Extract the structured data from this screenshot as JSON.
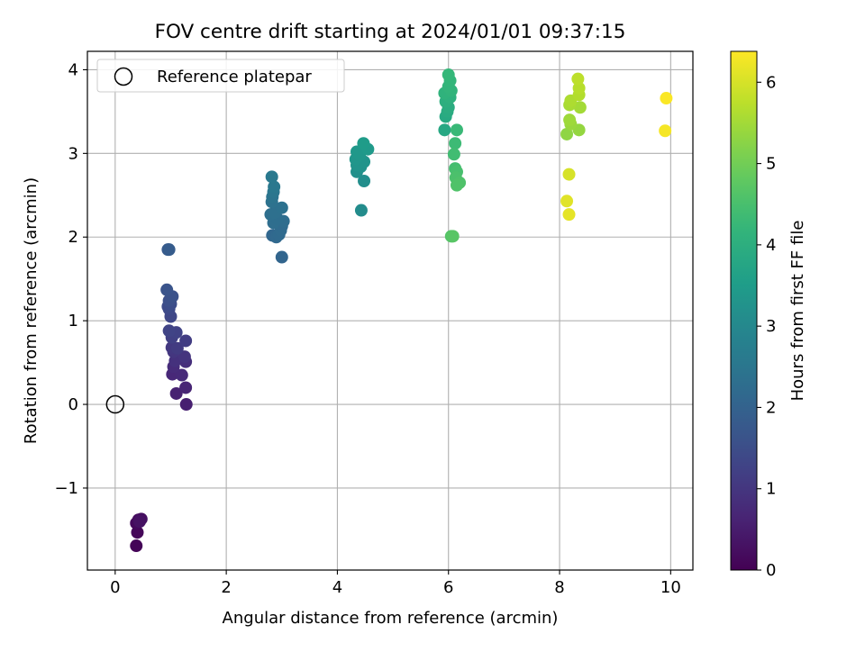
{
  "chart_data": {
    "type": "scatter",
    "title": "FOV centre drift starting at 2024/01/01 09:37:15",
    "xlabel": "Angular distance from reference (arcmin)",
    "ylabel": "Rotation from reference (arcmin)",
    "xlim": [
      -0.5,
      10.4
    ],
    "ylim": [
      -1.98,
      4.22
    ],
    "xticks": [
      0,
      2,
      4,
      6,
      8,
      10
    ],
    "xtick_labels": [
      "0",
      "2",
      "4",
      "6",
      "8",
      "10"
    ],
    "yticks": [
      -1,
      0,
      1,
      2,
      3,
      4
    ],
    "ytick_labels": [
      "−1",
      "0",
      "1",
      "2",
      "3",
      "4"
    ],
    "grid": true,
    "legend": {
      "placement": "upper-left",
      "entries": [
        "Reference platepar"
      ]
    },
    "reference_point": {
      "x": 0,
      "y": 0,
      "marker": "open-circle"
    },
    "colorbar": {
      "label": "Hours from first FF file",
      "colormap": "viridis",
      "range": [
        0,
        6.38
      ],
      "ticks": [
        0,
        1,
        2,
        3,
        4,
        5,
        6
      ],
      "tick_labels": [
        "0",
        "1",
        "2",
        "3",
        "4",
        "5",
        "6"
      ]
    },
    "points": [
      {
        "x": 0.38,
        "y": -1.69,
        "c": 0.05
      },
      {
        "x": 0.4,
        "y": -1.53,
        "c": 0.1
      },
      {
        "x": 0.38,
        "y": -1.42,
        "c": 0.15
      },
      {
        "x": 0.42,
        "y": -1.38,
        "c": 0.2
      },
      {
        "x": 0.47,
        "y": -1.37,
        "c": 0.25
      },
      {
        "x": 0.44,
        "y": -1.4,
        "c": 0.3
      },
      {
        "x": 1.28,
        "y": 0.0,
        "c": 0.55
      },
      {
        "x": 1.1,
        "y": 0.13,
        "c": 0.6
      },
      {
        "x": 1.27,
        "y": 0.2,
        "c": 0.65
      },
      {
        "x": 1.03,
        "y": 0.36,
        "c": 0.7
      },
      {
        "x": 1.2,
        "y": 0.35,
        "c": 0.75
      },
      {
        "x": 1.05,
        "y": 0.45,
        "c": 0.8
      },
      {
        "x": 1.27,
        "y": 0.51,
        "c": 0.85
      },
      {
        "x": 1.08,
        "y": 0.52,
        "c": 0.9
      },
      {
        "x": 1.25,
        "y": 0.57,
        "c": 0.95
      },
      {
        "x": 1.05,
        "y": 0.63,
        "c": 1.0
      },
      {
        "x": 1.02,
        "y": 0.68,
        "c": 1.05
      },
      {
        "x": 1.12,
        "y": 0.67,
        "c": 1.1
      },
      {
        "x": 1.27,
        "y": 0.76,
        "c": 1.15
      },
      {
        "x": 1.02,
        "y": 0.8,
        "c": 1.2
      },
      {
        "x": 1.1,
        "y": 0.86,
        "c": 1.25
      },
      {
        "x": 0.97,
        "y": 0.88,
        "c": 1.3
      },
      {
        "x": 1.0,
        "y": 1.05,
        "c": 1.35
      },
      {
        "x": 0.97,
        "y": 1.14,
        "c": 1.4
      },
      {
        "x": 0.95,
        "y": 1.17,
        "c": 1.45
      },
      {
        "x": 1.0,
        "y": 1.2,
        "c": 1.5
      },
      {
        "x": 0.97,
        "y": 1.24,
        "c": 1.55
      },
      {
        "x": 1.03,
        "y": 1.29,
        "c": 1.6
      },
      {
        "x": 0.93,
        "y": 1.37,
        "c": 1.65
      },
      {
        "x": 0.95,
        "y": 1.85,
        "c": 1.8
      },
      {
        "x": 0.97,
        "y": 1.85,
        "c": 1.85
      },
      {
        "x": 3.0,
        "y": 1.76,
        "c": 2.05
      },
      {
        "x": 2.83,
        "y": 2.02,
        "c": 2.1
      },
      {
        "x": 2.9,
        "y": 2.0,
        "c": 2.15
      },
      {
        "x": 2.95,
        "y": 2.03,
        "c": 2.18
      },
      {
        "x": 2.98,
        "y": 2.08,
        "c": 2.2
      },
      {
        "x": 3.0,
        "y": 2.13,
        "c": 2.22
      },
      {
        "x": 3.03,
        "y": 2.19,
        "c": 2.25
      },
      {
        "x": 2.85,
        "y": 2.17,
        "c": 2.28
      },
      {
        "x": 2.92,
        "y": 2.22,
        "c": 2.3
      },
      {
        "x": 2.8,
        "y": 2.27,
        "c": 2.33
      },
      {
        "x": 2.87,
        "y": 2.29,
        "c": 2.35
      },
      {
        "x": 3.0,
        "y": 2.35,
        "c": 2.38
      },
      {
        "x": 2.82,
        "y": 2.42,
        "c": 2.4
      },
      {
        "x": 2.83,
        "y": 2.48,
        "c": 2.45
      },
      {
        "x": 2.85,
        "y": 2.54,
        "c": 2.5
      },
      {
        "x": 2.86,
        "y": 2.6,
        "c": 2.55
      },
      {
        "x": 2.82,
        "y": 2.72,
        "c": 2.6
      },
      {
        "x": 4.43,
        "y": 2.32,
        "c": 3.1
      },
      {
        "x": 4.48,
        "y": 2.67,
        "c": 3.15
      },
      {
        "x": 4.35,
        "y": 2.78,
        "c": 3.2
      },
      {
        "x": 4.42,
        "y": 2.84,
        "c": 3.25
      },
      {
        "x": 4.35,
        "y": 2.86,
        "c": 3.28
      },
      {
        "x": 4.48,
        "y": 2.9,
        "c": 3.3
      },
      {
        "x": 4.33,
        "y": 2.93,
        "c": 3.33
      },
      {
        "x": 4.4,
        "y": 2.98,
        "c": 3.36
      },
      {
        "x": 4.35,
        "y": 3.02,
        "c": 3.4
      },
      {
        "x": 4.55,
        "y": 3.05,
        "c": 3.45
      },
      {
        "x": 4.47,
        "y": 3.12,
        "c": 3.5
      },
      {
        "x": 5.93,
        "y": 3.28,
        "c": 3.8
      },
      {
        "x": 5.95,
        "y": 3.44,
        "c": 3.85
      },
      {
        "x": 5.98,
        "y": 3.5,
        "c": 3.9
      },
      {
        "x": 6.0,
        "y": 3.55,
        "c": 3.95
      },
      {
        "x": 5.95,
        "y": 3.62,
        "c": 4.0
      },
      {
        "x": 6.03,
        "y": 3.67,
        "c": 4.05
      },
      {
        "x": 5.93,
        "y": 3.72,
        "c": 4.1
      },
      {
        "x": 6.05,
        "y": 3.75,
        "c": 4.15
      },
      {
        "x": 6.0,
        "y": 3.8,
        "c": 4.18
      },
      {
        "x": 6.03,
        "y": 3.87,
        "c": 4.2
      },
      {
        "x": 6.0,
        "y": 3.94,
        "c": 4.25
      },
      {
        "x": 6.15,
        "y": 3.28,
        "c": 4.3
      },
      {
        "x": 6.12,
        "y": 3.12,
        "c": 4.35
      },
      {
        "x": 6.1,
        "y": 2.99,
        "c": 4.4
      },
      {
        "x": 6.12,
        "y": 2.82,
        "c": 4.45
      },
      {
        "x": 6.15,
        "y": 2.78,
        "c": 4.5
      },
      {
        "x": 6.13,
        "y": 2.71,
        "c": 4.55
      },
      {
        "x": 6.2,
        "y": 2.65,
        "c": 4.58
      },
      {
        "x": 6.15,
        "y": 2.62,
        "c": 4.6
      },
      {
        "x": 6.05,
        "y": 2.01,
        "c": 4.65
      },
      {
        "x": 6.08,
        "y": 2.01,
        "c": 4.7
      },
      {
        "x": 8.13,
        "y": 3.23,
        "c": 5.3
      },
      {
        "x": 8.35,
        "y": 3.28,
        "c": 5.35
      },
      {
        "x": 8.2,
        "y": 3.35,
        "c": 5.4
      },
      {
        "x": 8.18,
        "y": 3.4,
        "c": 5.45
      },
      {
        "x": 8.37,
        "y": 3.55,
        "c": 5.5
      },
      {
        "x": 8.18,
        "y": 3.58,
        "c": 5.55
      },
      {
        "x": 8.2,
        "y": 3.63,
        "c": 5.6
      },
      {
        "x": 8.35,
        "y": 3.7,
        "c": 5.65
      },
      {
        "x": 8.35,
        "y": 3.78,
        "c": 5.7
      },
      {
        "x": 8.33,
        "y": 3.89,
        "c": 5.75
      },
      {
        "x": 8.17,
        "y": 2.75,
        "c": 6.0
      },
      {
        "x": 8.13,
        "y": 2.43,
        "c": 6.1
      },
      {
        "x": 8.17,
        "y": 2.27,
        "c": 6.15
      },
      {
        "x": 9.9,
        "y": 3.27,
        "c": 6.3
      },
      {
        "x": 9.92,
        "y": 3.66,
        "c": 6.35
      }
    ]
  }
}
